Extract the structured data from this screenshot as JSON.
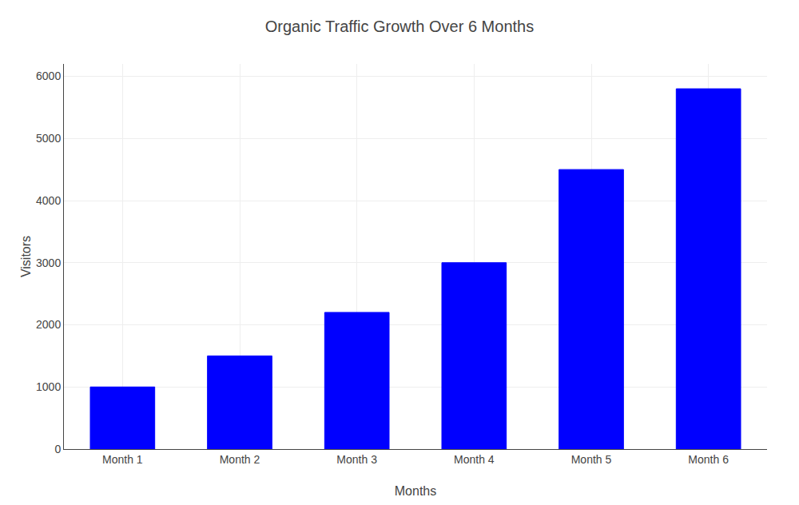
{
  "chart_data": {
    "type": "bar",
    "title": "Organic Traffic Growth Over 6 Months",
    "xlabel": "Months",
    "ylabel": "Visitors",
    "categories": [
      "Month 1",
      "Month 2",
      "Month 3",
      "Month 4",
      "Month 5",
      "Month 6"
    ],
    "values": [
      1000,
      1500,
      2200,
      3000,
      4500,
      5800
    ],
    "color": "#0000FF",
    "ylim": [
      0,
      6200
    ],
    "yticks": [
      0,
      1000,
      2000,
      3000,
      4000,
      5000,
      6000
    ],
    "grid": true
  }
}
